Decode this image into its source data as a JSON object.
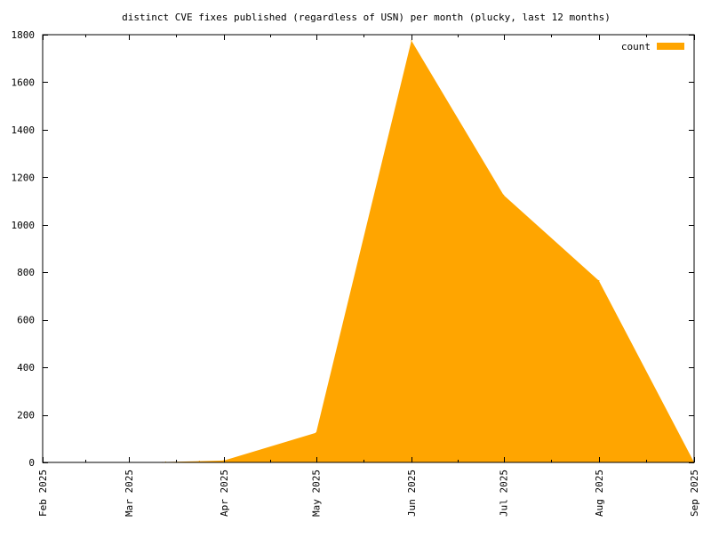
{
  "chart_data": {
    "type": "area",
    "title": "distinct CVE fixes published (regardless of USN) per month (plucky, last 12 months)",
    "xlabel": "",
    "ylabel": "",
    "x_axis": {
      "kind": "date",
      "range": [
        "2025-02-01",
        "2025-09-01"
      ],
      "tick_labels": [
        "Feb 2025",
        "Mar 2025",
        "Apr 2025",
        "May 2025",
        "Jun 2025",
        "Jul 2025",
        "Aug 2025",
        "Sep 2025"
      ],
      "tick_dates": [
        "2025-02-01",
        "2025-03-01",
        "2025-04-01",
        "2025-05-01",
        "2025-06-01",
        "2025-07-01",
        "2025-08-01",
        "2025-09-01"
      ]
    },
    "y_axis": {
      "range": [
        0,
        1800
      ],
      "tick_values": [
        0,
        200,
        400,
        600,
        800,
        1000,
        1200,
        1400,
        1600,
        1800
      ]
    },
    "grid": false,
    "legend": {
      "position": "top-right",
      "entries": [
        "count"
      ]
    },
    "series": [
      {
        "name": "count",
        "color": "#ffa500",
        "points": [
          {
            "x": "2025-03-12",
            "y": 0
          },
          {
            "x": "2025-03-13",
            "y": 2
          },
          {
            "x": "2025-03-24",
            "y": 5
          },
          {
            "x": "2025-04-01",
            "y": 8
          },
          {
            "x": "2025-05-01",
            "y": 125
          },
          {
            "x": "2025-06-01",
            "y": 1775
          },
          {
            "x": "2025-07-01",
            "y": 1125
          },
          {
            "x": "2025-08-01",
            "y": 765
          },
          {
            "x": "2025-09-01",
            "y": 0
          }
        ]
      }
    ]
  }
}
